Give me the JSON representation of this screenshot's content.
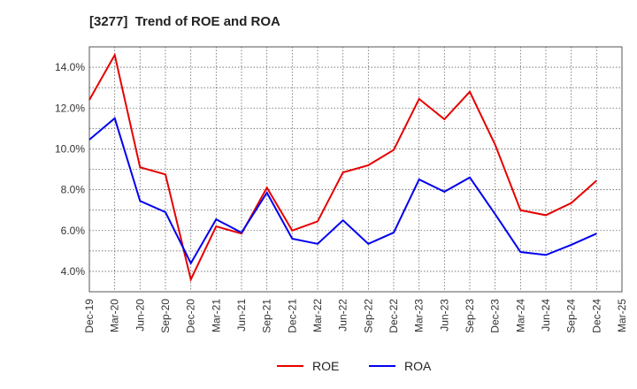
{
  "chart_data": {
    "type": "line",
    "title": "[3277]  Trend of ROE and ROA",
    "xlabel": "",
    "ylabel": "",
    "categories": [
      "Dec-19",
      "Mar-20",
      "Jun-20",
      "Sep-20",
      "Dec-20",
      "Mar-21",
      "Jun-21",
      "Sep-21",
      "Dec-21",
      "Mar-22",
      "Jun-22",
      "Sep-22",
      "Dec-22",
      "Mar-23",
      "Jun-23",
      "Sep-23",
      "Dec-23",
      "Mar-24",
      "Jun-24",
      "Sep-24",
      "Dec-24",
      "Mar-25"
    ],
    "y_ticks": [
      "4.0%",
      "6.0%",
      "8.0%",
      "10.0%",
      "12.0%",
      "14.0%"
    ],
    "ylim": [
      3.0,
      15.0
    ],
    "grid": true,
    "legend_position": "bottom",
    "series": [
      {
        "name": "ROE",
        "color": "#e60000",
        "values": [
          12.4,
          14.6,
          9.1,
          8.75,
          3.6,
          6.2,
          5.85,
          8.1,
          6.0,
          6.45,
          8.85,
          9.2,
          9.95,
          12.45,
          11.45,
          12.8,
          10.2,
          7.0,
          6.75,
          7.35,
          8.45,
          null
        ]
      },
      {
        "name": "ROA",
        "color": "#0000ee",
        "values": [
          10.45,
          11.5,
          7.45,
          6.9,
          4.4,
          6.55,
          5.9,
          7.85,
          5.6,
          5.35,
          6.5,
          5.35,
          5.9,
          8.5,
          7.9,
          8.6,
          6.8,
          4.95,
          4.8,
          5.3,
          5.85,
          null
        ]
      }
    ]
  }
}
